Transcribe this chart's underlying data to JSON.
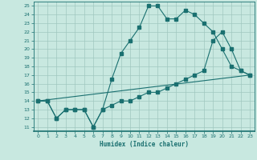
{
  "xlabel": "Humidex (Indice chaleur)",
  "background_color": "#c8e8e0",
  "grid_color": "#a0c8c0",
  "line_color": "#1a7070",
  "xlim": [
    -0.5,
    23.5
  ],
  "ylim": [
    10.5,
    25.5
  ],
  "xticks": [
    0,
    1,
    2,
    3,
    4,
    5,
    6,
    7,
    8,
    9,
    10,
    11,
    12,
    13,
    14,
    15,
    16,
    17,
    18,
    19,
    20,
    21,
    22,
    23
  ],
  "yticks": [
    11,
    12,
    13,
    14,
    15,
    16,
    17,
    18,
    19,
    20,
    21,
    22,
    23,
    24,
    25
  ],
  "line1_x": [
    0,
    1,
    2,
    3,
    4,
    5,
    6,
    7,
    8,
    9,
    10,
    11,
    12,
    13,
    14,
    15,
    16,
    17,
    18,
    19,
    20,
    21,
    22,
    23
  ],
  "line1_y": [
    14,
    14,
    12,
    13,
    13,
    13,
    11,
    13,
    16.5,
    19.5,
    21,
    22.5,
    25,
    25,
    23.5,
    23.5,
    24.5,
    24,
    23,
    22,
    20,
    18,
    17.5,
    17
  ],
  "line2_x": [
    0,
    1,
    2,
    3,
    4,
    5,
    6,
    7,
    8,
    9,
    10,
    11,
    12,
    13,
    14,
    15,
    16,
    17,
    18,
    19,
    20,
    21,
    22,
    23
  ],
  "line2_y": [
    14,
    14,
    12,
    13,
    13,
    13,
    11,
    13,
    13.5,
    14,
    14,
    14.5,
    15,
    15,
    15.5,
    16,
    16.5,
    17,
    17.5,
    21,
    22,
    20,
    17.5,
    17
  ],
  "line3_x": [
    0,
    23
  ],
  "line3_y": [
    14,
    17
  ]
}
